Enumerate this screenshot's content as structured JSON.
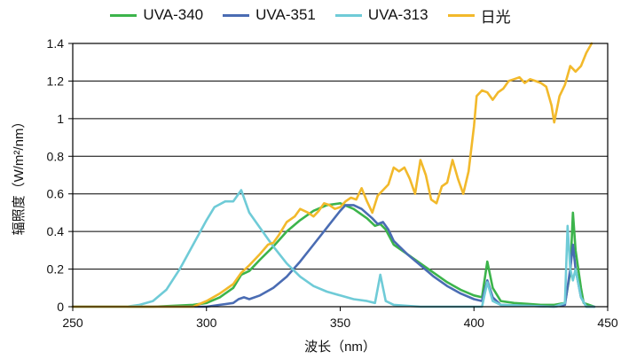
{
  "chart_data": {
    "type": "line",
    "xlabel": "波长（nm）",
    "ylabel": "辐照度（W/m²/nm）",
    "xlim": [
      250,
      450
    ],
    "ylim": [
      0,
      1.4
    ],
    "x_ticks": [
      "250",
      "300",
      "350",
      "400",
      "450"
    ],
    "y_ticks": [
      "0",
      "0.2",
      "0.4",
      "0.6",
      "0.8",
      "1",
      "1.2",
      "1.4"
    ],
    "grid": "horizontal",
    "legend": "top-center",
    "series": [
      {
        "name": "UVA-340",
        "color": "#3cb44b",
        "points": [
          [
            250,
            0
          ],
          [
            280,
            0
          ],
          [
            295,
            0.01
          ],
          [
            300,
            0.02
          ],
          [
            305,
            0.05
          ],
          [
            310,
            0.1
          ],
          [
            313,
            0.17
          ],
          [
            316,
            0.19
          ],
          [
            320,
            0.25
          ],
          [
            325,
            0.32
          ],
          [
            330,
            0.4
          ],
          [
            335,
            0.46
          ],
          [
            340,
            0.51
          ],
          [
            345,
            0.54
          ],
          [
            350,
            0.55
          ],
          [
            355,
            0.52
          ],
          [
            360,
            0.47
          ],
          [
            363,
            0.43
          ],
          [
            365,
            0.44
          ],
          [
            367,
            0.41
          ],
          [
            370,
            0.33
          ],
          [
            375,
            0.28
          ],
          [
            380,
            0.23
          ],
          [
            385,
            0.18
          ],
          [
            390,
            0.13
          ],
          [
            395,
            0.09
          ],
          [
            400,
            0.06
          ],
          [
            403,
            0.05
          ],
          [
            405,
            0.24
          ],
          [
            407,
            0.1
          ],
          [
            410,
            0.03
          ],
          [
            415,
            0.02
          ],
          [
            420,
            0.015
          ],
          [
            425,
            0.01
          ],
          [
            430,
            0.01
          ],
          [
            434,
            0.02
          ],
          [
            436,
            0.18
          ],
          [
            437,
            0.5
          ],
          [
            438,
            0.3
          ],
          [
            440,
            0.1
          ],
          [
            441,
            0.02
          ],
          [
            445,
            0
          ]
        ]
      },
      {
        "name": "UVA-351",
        "color": "#4a6cb3",
        "points": [
          [
            250,
            0
          ],
          [
            300,
            0
          ],
          [
            305,
            0.01
          ],
          [
            310,
            0.02
          ],
          [
            312,
            0.04
          ],
          [
            314,
            0.05
          ],
          [
            316,
            0.04
          ],
          [
            320,
            0.06
          ],
          [
            325,
            0.1
          ],
          [
            330,
            0.16
          ],
          [
            335,
            0.24
          ],
          [
            340,
            0.33
          ],
          [
            345,
            0.42
          ],
          [
            350,
            0.51
          ],
          [
            352,
            0.54
          ],
          [
            355,
            0.54
          ],
          [
            358,
            0.52
          ],
          [
            362,
            0.47
          ],
          [
            364,
            0.44
          ],
          [
            366,
            0.45
          ],
          [
            368,
            0.41
          ],
          [
            370,
            0.35
          ],
          [
            375,
            0.28
          ],
          [
            380,
            0.22
          ],
          [
            385,
            0.16
          ],
          [
            390,
            0.11
          ],
          [
            395,
            0.07
          ],
          [
            400,
            0.04
          ],
          [
            403,
            0.03
          ],
          [
            405,
            0.14
          ],
          [
            407,
            0.05
          ],
          [
            410,
            0.01
          ],
          [
            430,
            0
          ],
          [
            434,
            0.01
          ],
          [
            436,
            0.2
          ],
          [
            437,
            0.33
          ],
          [
            438,
            0.2
          ],
          [
            440,
            0.05
          ],
          [
            442,
            0
          ],
          [
            445,
            0
          ]
        ]
      },
      {
        "name": "UVA-313",
        "color": "#6fcbd7",
        "points": [
          [
            250,
            0
          ],
          [
            270,
            0
          ],
          [
            275,
            0.01
          ],
          [
            280,
            0.03
          ],
          [
            285,
            0.09
          ],
          [
            290,
            0.2
          ],
          [
            295,
            0.33
          ],
          [
            300,
            0.46
          ],
          [
            303,
            0.53
          ],
          [
            307,
            0.56
          ],
          [
            310,
            0.56
          ],
          [
            313,
            0.62
          ],
          [
            316,
            0.5
          ],
          [
            320,
            0.42
          ],
          [
            325,
            0.32
          ],
          [
            330,
            0.23
          ],
          [
            335,
            0.16
          ],
          [
            340,
            0.11
          ],
          [
            345,
            0.08
          ],
          [
            350,
            0.06
          ],
          [
            355,
            0.04
          ],
          [
            360,
            0.03
          ],
          [
            363,
            0.02
          ],
          [
            365,
            0.17
          ],
          [
            367,
            0.03
          ],
          [
            370,
            0.01
          ],
          [
            380,
            0
          ],
          [
            403,
            0
          ],
          [
            405,
            0.13
          ],
          [
            407,
            0.03
          ],
          [
            410,
            0.01
          ],
          [
            430,
            0
          ],
          [
            434,
            0.02
          ],
          [
            435,
            0.43
          ],
          [
            436,
            0.2
          ],
          [
            437,
            0.14
          ],
          [
            438,
            0.2
          ],
          [
            440,
            0.05
          ],
          [
            442,
            0
          ],
          [
            445,
            0
          ]
        ]
      },
      {
        "name": "日光",
        "color": "#f2b92b",
        "points": [
          [
            250,
            0
          ],
          [
            295,
            0
          ],
          [
            300,
            0.03
          ],
          [
            305,
            0.07
          ],
          [
            310,
            0.12
          ],
          [
            313,
            0.18
          ],
          [
            316,
            0.22
          ],
          [
            320,
            0.28
          ],
          [
            323,
            0.33
          ],
          [
            325,
            0.34
          ],
          [
            327,
            0.38
          ],
          [
            330,
            0.45
          ],
          [
            333,
            0.48
          ],
          [
            335,
            0.52
          ],
          [
            338,
            0.5
          ],
          [
            340,
            0.48
          ],
          [
            342,
            0.51
          ],
          [
            344,
            0.55
          ],
          [
            346,
            0.54
          ],
          [
            348,
            0.52
          ],
          [
            350,
            0.53
          ],
          [
            352,
            0.56
          ],
          [
            354,
            0.58
          ],
          [
            356,
            0.57
          ],
          [
            358,
            0.63
          ],
          [
            360,
            0.56
          ],
          [
            362,
            0.5
          ],
          [
            364,
            0.59
          ],
          [
            366,
            0.62
          ],
          [
            368,
            0.65
          ],
          [
            370,
            0.74
          ],
          [
            372,
            0.72
          ],
          [
            374,
            0.74
          ],
          [
            376,
            0.68
          ],
          [
            378,
            0.6
          ],
          [
            380,
            0.78
          ],
          [
            382,
            0.7
          ],
          [
            384,
            0.57
          ],
          [
            386,
            0.55
          ],
          [
            388,
            0.64
          ],
          [
            390,
            0.66
          ],
          [
            392,
            0.78
          ],
          [
            394,
            0.68
          ],
          [
            396,
            0.6
          ],
          [
            398,
            0.72
          ],
          [
            400,
            0.96
          ],
          [
            401,
            1.12
          ],
          [
            403,
            1.15
          ],
          [
            405,
            1.14
          ],
          [
            407,
            1.1
          ],
          [
            409,
            1.14
          ],
          [
            411,
            1.16
          ],
          [
            413,
            1.2
          ],
          [
            415,
            1.21
          ],
          [
            417,
            1.22
          ],
          [
            419,
            1.19
          ],
          [
            421,
            1.21
          ],
          [
            423,
            1.2
          ],
          [
            425,
            1.19
          ],
          [
            427,
            1.17
          ],
          [
            429,
            1.07
          ],
          [
            430,
            0.98
          ],
          [
            432,
            1.12
          ],
          [
            434,
            1.18
          ],
          [
            436,
            1.28
          ],
          [
            438,
            1.25
          ],
          [
            440,
            1.28
          ],
          [
            442,
            1.35
          ],
          [
            444,
            1.4
          ]
        ]
      }
    ]
  }
}
